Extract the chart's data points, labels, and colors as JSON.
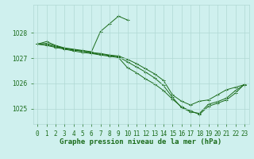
{
  "title": "Graphe pression niveau de la mer (hPa)",
  "background_color": "#cff0ee",
  "grid_color": "#b0d8d4",
  "line_color": "#1a6b1a",
  "marker_color": "#1a6b1a",
  "tick_color": "#1a6b1a",
  "ylabel_ticks": [
    1025,
    1026,
    1027,
    1028
  ],
  "xlim": [
    -0.5,
    23.5
  ],
  "ylim": [
    1024.4,
    1029.1
  ],
  "series": [
    {
      "x": [
        0,
        1,
        2,
        3,
        4,
        5,
        6,
        7,
        8,
        9,
        10
      ],
      "y": [
        1027.55,
        1027.65,
        1027.5,
        1027.4,
        1027.35,
        1027.3,
        1027.25,
        1028.05,
        1028.35,
        1028.65,
        1028.5
      ]
    },
    {
      "x": [
        0,
        1,
        2,
        3,
        4,
        5,
        6,
        7,
        8,
        9,
        10,
        11,
        12,
        13,
        14,
        15,
        16,
        17,
        18,
        19,
        20,
        21,
        22,
        23
      ],
      "y": [
        1027.55,
        1027.58,
        1027.48,
        1027.38,
        1027.32,
        1027.28,
        1027.22,
        1027.18,
        1027.12,
        1027.08,
        1026.95,
        1026.78,
        1026.58,
        1026.38,
        1026.12,
        1025.55,
        1025.3,
        1025.15,
        1025.3,
        1025.35,
        1025.55,
        1025.75,
        1025.85,
        1025.95
      ]
    },
    {
      "x": [
        0,
        1,
        2,
        3,
        4,
        5,
        6,
        7,
        8,
        9,
        10,
        11,
        12,
        13,
        14,
        15,
        16,
        17,
        18,
        19,
        20,
        21,
        22,
        23
      ],
      "y": [
        1027.55,
        1027.52,
        1027.45,
        1027.38,
        1027.32,
        1027.27,
        1027.2,
        1027.15,
        1027.1,
        1027.05,
        1026.85,
        1026.65,
        1026.45,
        1026.22,
        1025.92,
        1025.45,
        1025.05,
        1024.88,
        1024.82,
        1025.18,
        1025.28,
        1025.42,
        1025.72,
        1025.95
      ]
    },
    {
      "x": [
        0,
        1,
        2,
        3,
        4,
        5,
        6,
        7,
        8,
        9,
        10,
        11,
        12,
        13,
        14,
        15,
        16,
        17,
        18,
        19,
        20,
        21,
        22,
        23
      ],
      "y": [
        1027.55,
        1027.5,
        1027.42,
        1027.35,
        1027.28,
        1027.22,
        1027.18,
        1027.12,
        1027.07,
        1027.02,
        1026.62,
        1026.42,
        1026.18,
        1025.98,
        1025.72,
        1025.38,
        1025.08,
        1024.92,
        1024.78,
        1025.1,
        1025.22,
        1025.35,
        1025.62,
        1025.97
      ]
    }
  ],
  "xtick_labels": [
    "0",
    "1",
    "2",
    "3",
    "4",
    "5",
    "6",
    "7",
    "8",
    "9",
    "10",
    "11",
    "12",
    "13",
    "14",
    "15",
    "16",
    "17",
    "18",
    "19",
    "20",
    "21",
    "22",
    "23"
  ],
  "tick_fontsize": 5.5,
  "title_fontsize": 6.5
}
